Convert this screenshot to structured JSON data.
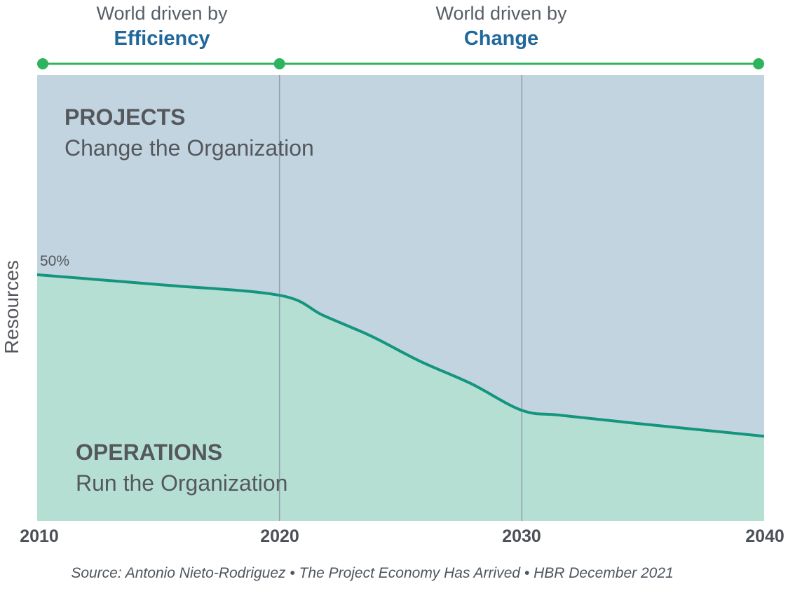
{
  "era_headers": {
    "left": {
      "line1": "World driven by",
      "line2": "Efficiency"
    },
    "right": {
      "line1": "World driven by",
      "line2": "Change"
    }
  },
  "labels": {
    "projects_title": "PROJECTS",
    "projects_subtitle": "Change the Organization",
    "operations_title": "OPERATIONS",
    "operations_subtitle": "Run the Organization",
    "y_axis": "Resources",
    "start_value": "50%"
  },
  "source": "Source: Antonio Nieto-Rodriguez • The Project Economy Has Arrived • HBR December 2021",
  "colors": {
    "projects_area": "#c3d4e1",
    "operations_area": "#b6dfd3",
    "split_curve": "#14957e",
    "timeline_green": "#2eb45e",
    "gridline": "#94a0ab",
    "heading_blue": "#20689a",
    "text_gray": "#54585d"
  },
  "timeline": {
    "dot_years": [
      2010,
      2020,
      2040
    ]
  },
  "chart_data": {
    "type": "area",
    "title": "",
    "xlabel": "",
    "ylabel": "Resources",
    "x_range": [
      2010,
      2040
    ],
    "x_ticks": [
      "2010",
      "2020",
      "2030",
      "2040"
    ],
    "gridline_years": [
      2020,
      2030
    ],
    "annotation": {
      "text": "50%",
      "x": 2010,
      "meaning": "operations share of resources in 2010"
    },
    "areas": [
      {
        "name": "PROJECTS",
        "caption": "Change the Organization",
        "position": "above-curve"
      },
      {
        "name": "OPERATIONS",
        "caption": "Run the Organization",
        "position": "below-curve"
      }
    ],
    "operations_share_est_pct_at_ticks": [
      50,
      46,
      22,
      17
    ],
    "curve": {
      "description": "Boundary between OPERATIONS (below) and PROJECTS (above); y = percent of plot height measured from bottom",
      "points": [
        [
          2010,
          55.2
        ],
        [
          2015,
          53.0
        ],
        [
          2020,
          50.6
        ],
        [
          2021.8,
          46.1
        ],
        [
          2023.8,
          41.4
        ],
        [
          2025.8,
          35.8
        ],
        [
          2027.9,
          30.8
        ],
        [
          2030,
          24.8
        ],
        [
          2031.6,
          23.7
        ],
        [
          2034.5,
          22.0
        ],
        [
          2040,
          19.0
        ]
      ]
    }
  }
}
